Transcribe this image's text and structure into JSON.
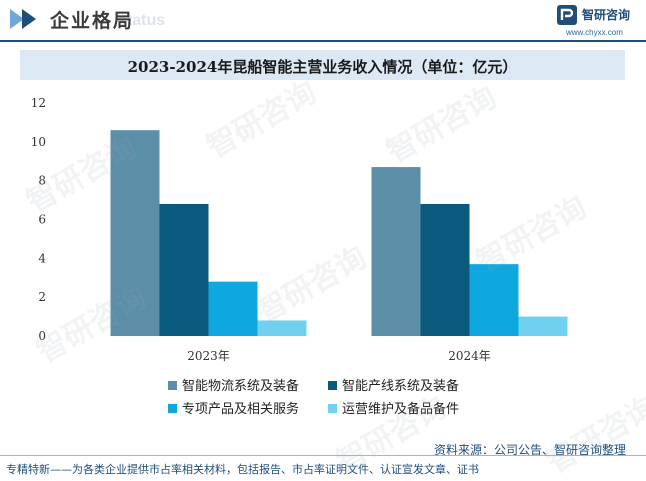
{
  "header": {
    "section_title": "企业格局",
    "section_watermark": "status",
    "brand_name": "智研咨询",
    "brand_url": "www.chyxx.com"
  },
  "watermark_text": "智研咨询",
  "chart_data": {
    "type": "bar",
    "title": "2023-2024年昆船智能主营业务收入情况（单位：亿元）",
    "categories": [
      "2023年",
      "2024年"
    ],
    "series": [
      {
        "name": "智能物流系统及装备",
        "color": "#5b8fa8",
        "values": [
          10.6,
          8.7
        ]
      },
      {
        "name": "智能产线系统及装备",
        "color": "#0b5a7d",
        "values": [
          6.8,
          6.8
        ]
      },
      {
        "name": "专项产品及相关服务",
        "color": "#0fa7df",
        "values": [
          2.8,
          3.7
        ]
      },
      {
        "name": "运营维护及备品备件",
        "color": "#6fd0f0",
        "values": [
          0.8,
          1.0
        ]
      }
    ],
    "ylim": [
      0,
      12
    ],
    "yticks": [
      0,
      2,
      4,
      6,
      8,
      10,
      12
    ],
    "legend_position": "bottom",
    "grid": false
  },
  "source": "资料来源：公司公告、智研咨询整理",
  "footer": "专精特新——为各类企业提供市占率相关材料，包括报告、市占率证明文件、认证宣发文章、证书"
}
